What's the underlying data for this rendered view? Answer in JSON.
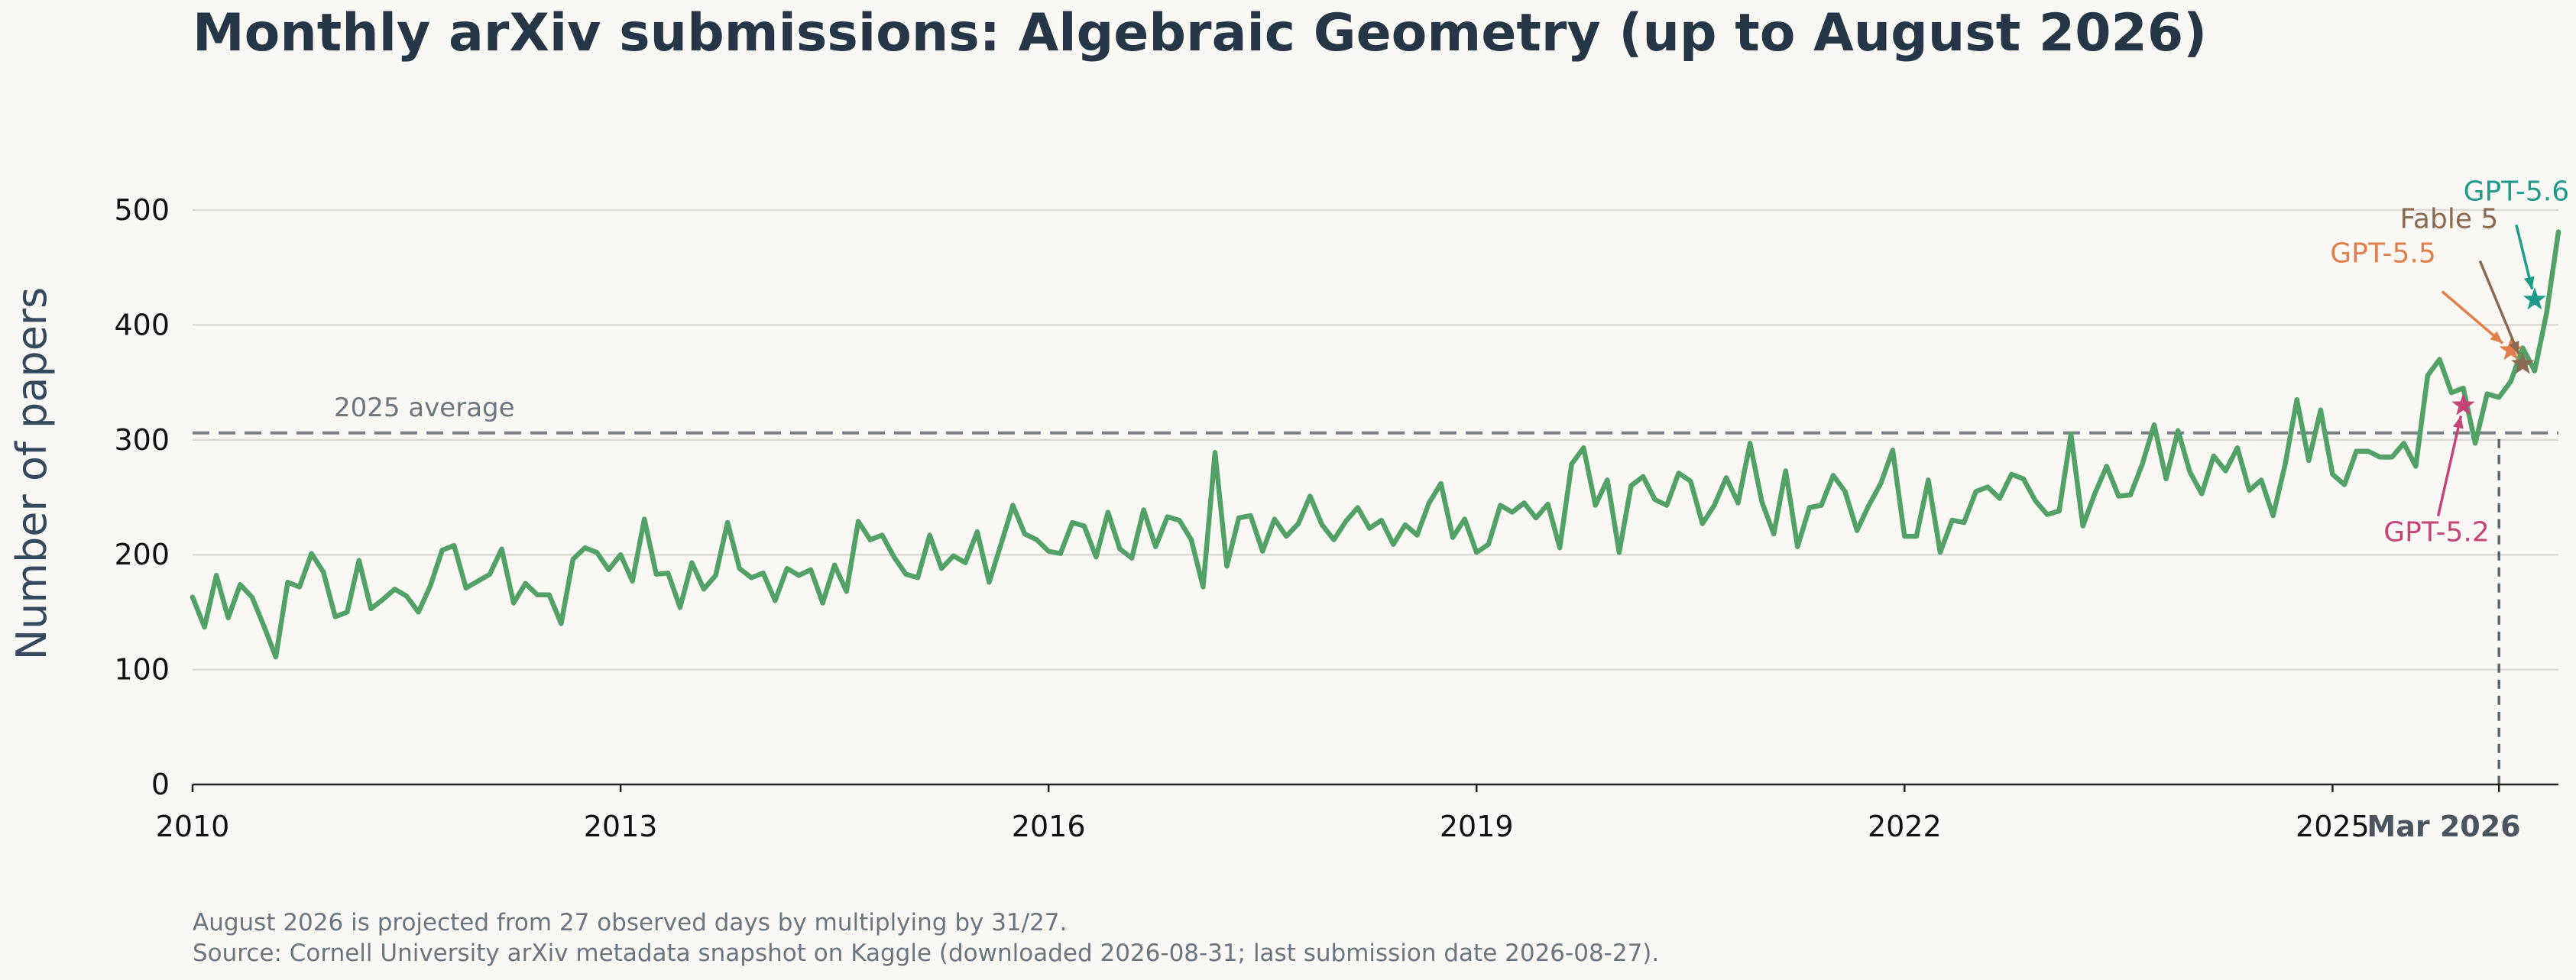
{
  "chart_data": {
    "type": "line",
    "title": "Monthly arXiv submissions: Algebraic Geometry (up to August 2026)",
    "ylabel": "Number of papers",
    "xlabel": "",
    "ylim": [
      0,
      500
    ],
    "yticks": [
      0,
      100,
      200,
      300,
      400,
      500
    ],
    "xlim": [
      "2010-01",
      "2026-08"
    ],
    "xtick_labels": [
      {
        "label": "2010",
        "date": "2010-01"
      },
      {
        "label": "2013",
        "date": "2013-01"
      },
      {
        "label": "2016",
        "date": "2016-01"
      },
      {
        "label": "2019",
        "date": "2019-01"
      },
      {
        "label": "2022",
        "date": "2022-01"
      },
      {
        "label": "2025",
        "date": "2025-01"
      },
      {
        "label": "Mar 2026",
        "date": "2026-03",
        "bold": true
      }
    ],
    "grid": "horizontal",
    "line_color": "#52a267",
    "series": [
      {
        "start": "2010-01",
        "values": [
          163,
          137,
          182,
          145,
          174,
          163,
          138,
          111,
          176,
          172,
          201,
          185,
          146,
          150,
          195,
          153,
          161,
          170,
          164,
          150,
          173,
          204,
          208,
          171,
          177,
          183,
          205,
          158,
          175,
          165,
          165,
          140,
          196,
          206,
          202,
          187,
          200,
          177,
          231,
          183,
          184,
          154,
          193,
          170,
          182,
          228,
          188,
          180,
          184,
          160,
          188,
          182,
          187,
          158,
          191,
          168,
          229,
          213,
          217,
          198,
          183,
          180,
          217,
          188,
          199,
          193,
          220,
          176,
          209,
          243,
          218,
          213,
          203,
          201,
          228,
          225,
          198,
          237,
          205,
          197,
          239,
          207,
          233,
          230,
          213,
          172,
          289,
          190,
          232,
          234,
          203,
          231,
          216,
          227,
          251,
          226,
          213,
          229,
          241,
          223,
          230,
          209,
          226,
          217,
          245,
          262,
          215,
          231,
          202,
          209,
          243,
          237,
          245,
          232,
          244,
          206,
          279,
          293,
          243,
          265,
          202,
          260,
          268,
          248,
          243,
          271,
          264,
          227,
          243,
          267,
          245,
          297,
          246,
          218,
          273,
          207,
          241,
          243,
          269,
          255,
          221,
          243,
          262,
          291,
          216,
          216,
          265,
          202,
          230,
          228,
          255,
          259,
          249,
          270,
          266,
          247,
          235,
          238,
          305,
          225,
          253,
          277,
          251,
          252,
          279,
          313,
          266,
          308,
          272,
          253,
          286,
          273,
          293,
          256,
          265,
          234,
          278,
          335,
          282,
          326,
          270,
          261,
          290,
          290,
          285,
          285,
          297,
          277,
          356,
          370,
          341,
          345,
          297,
          340,
          337,
          351,
          380,
          360,
          410,
          481
        ]
      }
    ],
    "reference_line": {
      "label": "2025 average",
      "value": 306,
      "color": "#7a7f86"
    },
    "vertical_marker": {
      "date": "2026-03",
      "color": "#5b6670"
    },
    "annotations": [
      {
        "label": "GPT-5.2",
        "date": "2025-12",
        "value": 330,
        "color": "#c4457a"
      },
      {
        "label": "GPT-5.5",
        "date": "2026-04",
        "value": 378,
        "color": "#e07f4a"
      },
      {
        "label": "Fable 5",
        "date": "2026-05",
        "value": 366,
        "color": "#8a6a50"
      },
      {
        "label": "GPT-5.6",
        "date": "2026-06",
        "value": 422,
        "color": "#1f9b8c"
      }
    ]
  },
  "footnotes": [
    "August 2026 is projected from 27 observed days by multiplying by 31/27.",
    "Source: Cornell University arXiv metadata snapshot on Kaggle (downloaded 2026-08-31; last submission date 2026-08-27)."
  ]
}
